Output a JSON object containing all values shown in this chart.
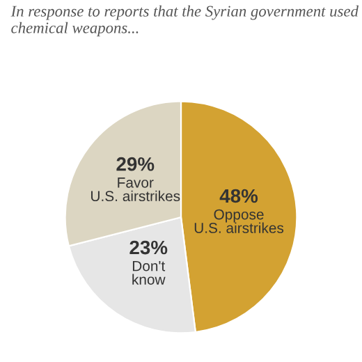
{
  "chart_data": {
    "type": "pie",
    "title": "In response to reports that the Syrian government used chemical weapons...",
    "categories": [
      "Oppose U.S. airstrikes",
      "Don't know",
      "Favor U.S. airstrikes"
    ],
    "values": [
      48,
      23,
      29
    ],
    "value_labels": [
      "48%",
      "23%",
      "29%"
    ],
    "colors": [
      "#d3a232",
      "#e6e6e6",
      "#dcd6c2"
    ]
  }
}
